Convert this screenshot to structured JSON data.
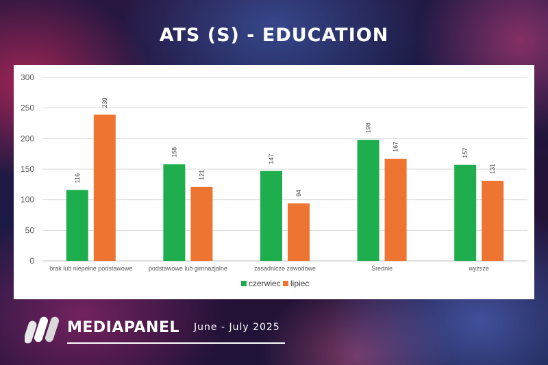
{
  "title": "ATS (S) - EDUCATION",
  "chart_data": {
    "type": "bar",
    "categories": [
      "brak lub niepełne podstawowe",
      "podstawowe lub gimnazjalne",
      "zasadnicze zawodowe",
      "Średnie",
      "wyższe"
    ],
    "series": [
      {
        "name": "czerwiec",
        "values": [
          116,
          158,
          147,
          198,
          157
        ],
        "color": "#1fae4d"
      },
      {
        "name": "lipiec",
        "values": [
          239,
          121,
          94,
          167,
          131
        ],
        "color": "#ed7431"
      }
    ],
    "y_ticks": [
      "0",
      "50",
      "100",
      "150",
      "200",
      "250",
      "300"
    ],
    "ylim": [
      0,
      300
    ],
    "grid": true,
    "legend_position": "bottom"
  },
  "brand": {
    "name": "MEDIAPANEL",
    "period": "June - July  2025"
  }
}
